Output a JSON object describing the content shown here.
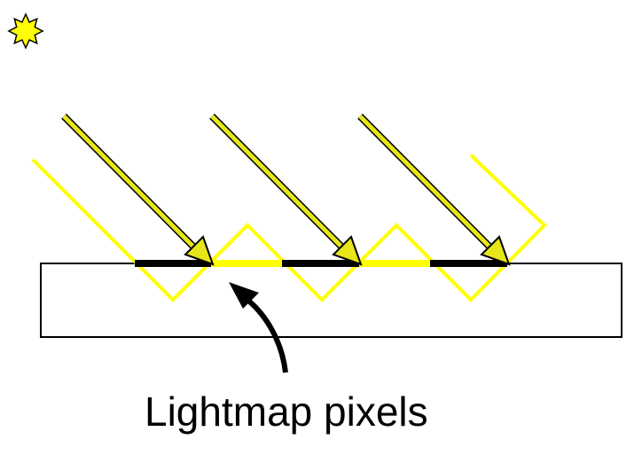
{
  "caption": "Lightmap pixels",
  "colors": {
    "light": "#ffff00",
    "arrow_fill": "#e6e61a",
    "outline": "#000000",
    "background": "#ffffff",
    "pixel_lit": "#ffff00",
    "pixel_shadow": "#000000"
  },
  "icons": {
    "light_source": "sun-icon"
  }
}
